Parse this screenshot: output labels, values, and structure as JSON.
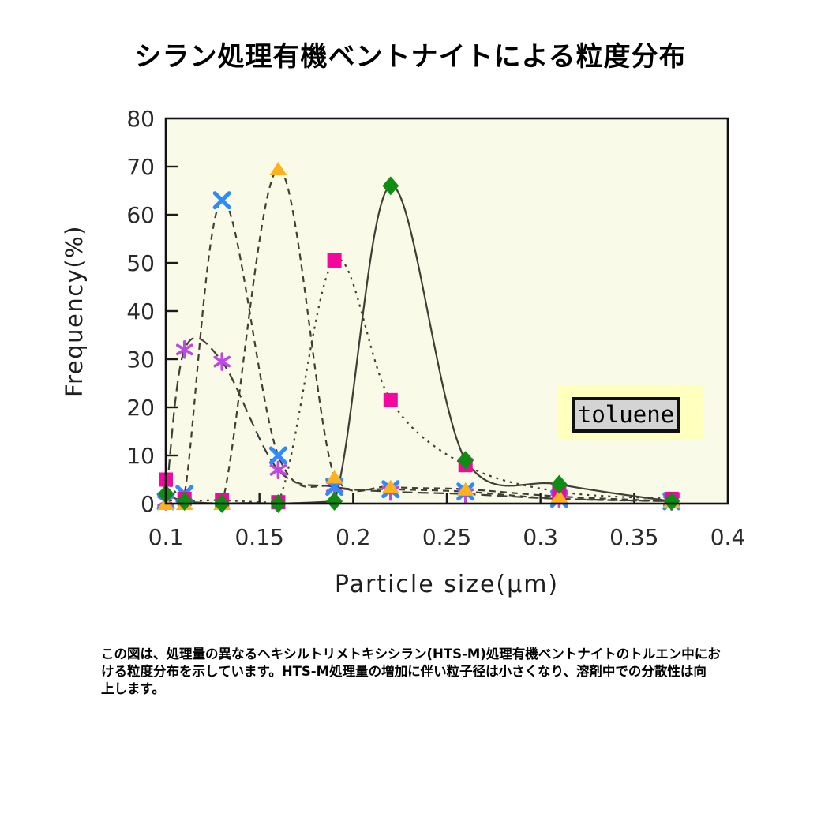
{
  "page": {
    "title": "シラン処理有機ベントナイトによる粒度分布"
  },
  "annotation": {
    "solvent_label": "toluene",
    "highlight_color": "#ffffbe",
    "box_color": "#d4d4d4"
  },
  "caption": {
    "lines": [
      "この図は、処理量の異なるヘキシルトリメトキシシラン(HTS-M)処理有機ベントナイトのトルエン中にお",
      "ける粒度分布を示しています。HTS-M処理量の増加に伴い粒子径は小さくなり、溶剤中での分散性は向",
      "上します。"
    ]
  },
  "chart_data": {
    "type": "line",
    "title": "シラン処理有機ベントナイトによる粒度分布",
    "xlabel": "Particle size(μm)",
    "ylabel": "Frequency(%)",
    "xlim": [
      0.1,
      0.4
    ],
    "ylim": [
      0,
      80
    ],
    "x_ticks": [
      0.1,
      0.15,
      0.2,
      0.25,
      0.3,
      0.35,
      0.4
    ],
    "x_tick_labels": [
      "0.1",
      "0.15",
      "0.2",
      "0.25",
      "0.3",
      "0.35",
      "0.4"
    ],
    "y_ticks": [
      0,
      10,
      20,
      30,
      40,
      50,
      60,
      70,
      80
    ],
    "grid": false,
    "legend_position": "none",
    "plot_background": "#fafae8",
    "line_color": "#3f3f36",
    "annotation_text": "toluene",
    "x": [
      0.1,
      0.11,
      0.13,
      0.16,
      0.19,
      0.22,
      0.26,
      0.31,
      0.37
    ],
    "series": [
      {
        "name": "purple-asterisk",
        "marker": "asterisk",
        "color": "#bd49e3",
        "line_style": "long-dash",
        "values": [
          0.5,
          32,
          29.5,
          7,
          3.5,
          2.5,
          2,
          1,
          0.5
        ]
      },
      {
        "name": "blue-x",
        "marker": "x",
        "color": "#2e8bff",
        "line_style": "dash",
        "values": [
          0.5,
          2,
          63,
          10,
          3.5,
          3,
          2.5,
          1,
          0.5
        ]
      },
      {
        "name": "magenta-square",
        "marker": "square",
        "color": "#f2079f",
        "line_style": "dot-dash",
        "values": [
          5,
          1,
          0.7,
          0.3,
          50.5,
          21.5,
          8,
          2.5,
          1
        ]
      },
      {
        "name": "orange-triangle",
        "marker": "triangle",
        "color": "#ffb21e",
        "line_style": "dash",
        "values": [
          0,
          0,
          0,
          69.5,
          5.5,
          3.5,
          3,
          1.5,
          0.5
        ]
      },
      {
        "name": "green-diamond",
        "marker": "diamond",
        "color": "#0e8c14",
        "line_style": "solid",
        "values": [
          2,
          0.5,
          0,
          0,
          0.5,
          66,
          9,
          4,
          0.5
        ]
      }
    ]
  }
}
